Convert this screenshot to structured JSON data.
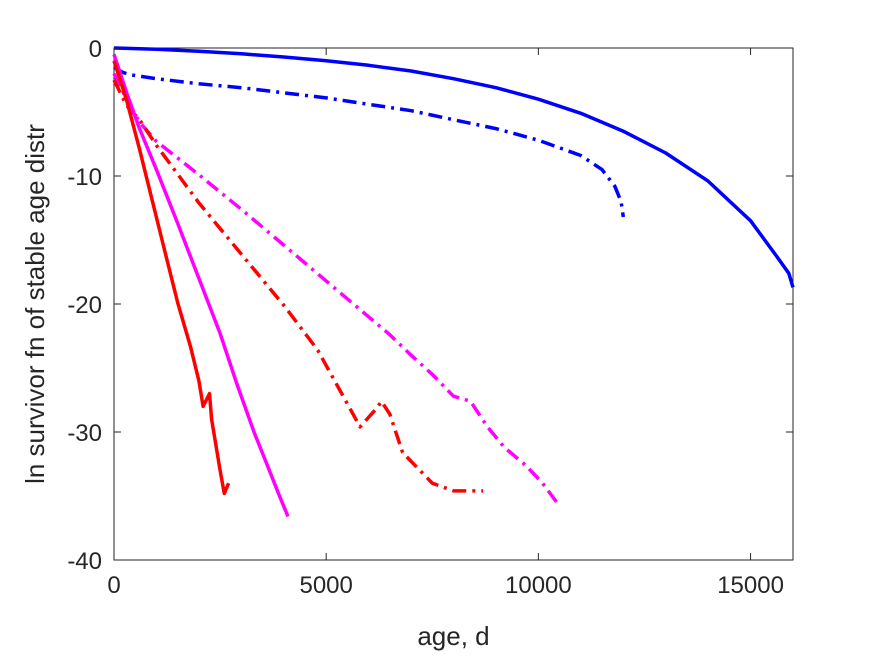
{
  "chart_data": {
    "type": "line",
    "title": "",
    "xlabel": "age, d",
    "ylabel": "ln survivor fn of stable age distr",
    "xlim": [
      0,
      16000
    ],
    "ylim": [
      -40,
      0
    ],
    "xticks": [
      0,
      5000,
      10000,
      15000
    ],
    "yticks": [
      0,
      -10,
      -20,
      -30,
      -40
    ],
    "xtick_labels": [
      "0",
      "5000",
      "10000",
      "15000"
    ],
    "ytick_labels": [
      "0",
      "-10",
      "-20",
      "-30",
      "-40"
    ],
    "grid": false,
    "legend": "none",
    "series": [
      {
        "color": "#0000ff",
        "dash": "solid",
        "points": [
          [
            0,
            0
          ],
          [
            1000,
            -0.1
          ],
          [
            2000,
            -0.25
          ],
          [
            3000,
            -0.45
          ],
          [
            4000,
            -0.7
          ],
          [
            5000,
            -1.0
          ],
          [
            6000,
            -1.35
          ],
          [
            7000,
            -1.8
          ],
          [
            8000,
            -2.4
          ],
          [
            9000,
            -3.1
          ],
          [
            10000,
            -4.0
          ],
          [
            11000,
            -5.1
          ],
          [
            12000,
            -6.5
          ],
          [
            13000,
            -8.2
          ],
          [
            14000,
            -10.4
          ],
          [
            15000,
            -13.5
          ],
          [
            15600,
            -16.2
          ],
          [
            15900,
            -17.6
          ],
          [
            16000,
            -18.7
          ]
        ]
      },
      {
        "color": "#0000ff",
        "dash": "dashdot",
        "points": [
          [
            0,
            -1.5
          ],
          [
            200,
            -1.9
          ],
          [
            400,
            -2.1
          ],
          [
            1000,
            -2.4
          ],
          [
            2000,
            -2.8
          ],
          [
            3000,
            -3.1
          ],
          [
            4000,
            -3.5
          ],
          [
            5000,
            -3.9
          ],
          [
            6000,
            -4.4
          ],
          [
            7000,
            -4.9
          ],
          [
            8000,
            -5.6
          ],
          [
            9000,
            -6.3
          ],
          [
            10000,
            -7.2
          ],
          [
            11000,
            -8.4
          ],
          [
            11500,
            -9.5
          ],
          [
            11800,
            -10.8
          ],
          [
            11950,
            -12.0
          ],
          [
            12000,
            -13.2
          ]
        ]
      },
      {
        "color": "#ff00ff",
        "dash": "dashdot",
        "points": [
          [
            0,
            -2.0
          ],
          [
            300,
            -4.0
          ],
          [
            600,
            -5.8
          ],
          [
            1000,
            -7.3
          ],
          [
            2000,
            -9.9
          ],
          [
            3000,
            -12.6
          ],
          [
            4000,
            -15.4
          ],
          [
            5000,
            -18.2
          ],
          [
            6000,
            -21.0
          ],
          [
            6500,
            -22.4
          ],
          [
            7000,
            -24.0
          ],
          [
            7500,
            -25.5
          ],
          [
            8000,
            -27.2
          ],
          [
            8400,
            -27.6
          ],
          [
            8800,
            -29.6
          ],
          [
            9200,
            -31.2
          ],
          [
            9700,
            -32.6
          ],
          [
            10100,
            -34.0
          ],
          [
            10500,
            -35.8
          ]
        ]
      },
      {
        "color": "#ff0000",
        "dash": "dashdot",
        "points": [
          [
            0,
            -2.5
          ],
          [
            300,
            -4.5
          ],
          [
            600,
            -5.6
          ],
          [
            1000,
            -7.6
          ],
          [
            2000,
            -12.1
          ],
          [
            3000,
            -16.1
          ],
          [
            4000,
            -20.1
          ],
          [
            4800,
            -23.6
          ],
          [
            5300,
            -26.6
          ],
          [
            5800,
            -29.6
          ],
          [
            6200,
            -28.1
          ],
          [
            6300,
            -27.6
          ],
          [
            6500,
            -28.6
          ],
          [
            6800,
            -31.6
          ],
          [
            7500,
            -34.0
          ],
          [
            8000,
            -34.6
          ],
          [
            8700,
            -34.6
          ]
        ]
      },
      {
        "color": "#ff00ff",
        "dash": "solid",
        "points": [
          [
            0,
            -0.5
          ],
          [
            300,
            -3.5
          ],
          [
            600,
            -6.3
          ],
          [
            1000,
            -9.5
          ],
          [
            1500,
            -13.7
          ],
          [
            2000,
            -18.0
          ],
          [
            2500,
            -22.3
          ],
          [
            2900,
            -26.3
          ],
          [
            3300,
            -30.0
          ],
          [
            3600,
            -32.5
          ],
          [
            3900,
            -35.0
          ],
          [
            4100,
            -36.6
          ]
        ]
      },
      {
        "color": "#ff0000",
        "dash": "solid",
        "points": [
          [
            0,
            -1.0
          ],
          [
            300,
            -4.1
          ],
          [
            600,
            -7.9
          ],
          [
            900,
            -11.9
          ],
          [
            1200,
            -15.9
          ],
          [
            1500,
            -19.9
          ],
          [
            1800,
            -23.3
          ],
          [
            2000,
            -26.0
          ],
          [
            2100,
            -28.0
          ],
          [
            2250,
            -27.0
          ],
          [
            2300,
            -29.0
          ],
          [
            2500,
            -33.0
          ],
          [
            2600,
            -34.8
          ],
          [
            2700,
            -34.0
          ]
        ]
      }
    ]
  }
}
